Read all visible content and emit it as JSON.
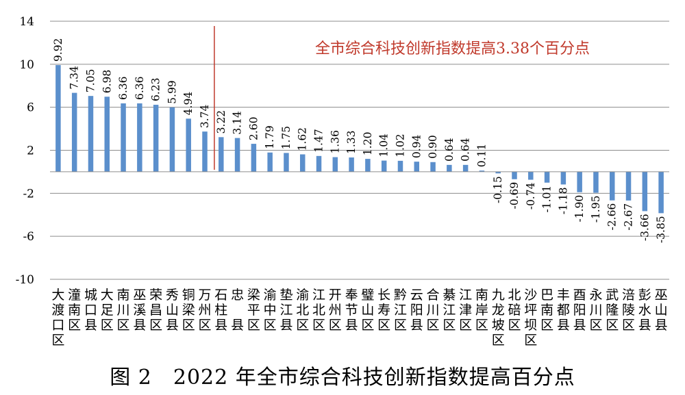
{
  "chart_data": {
    "type": "bar",
    "categories": [
      "大渡口区",
      "潼南区",
      "城口县",
      "大足区",
      "南川区",
      "巫溪县",
      "荣昌区",
      "秀山县",
      "铜梁区",
      "万州区",
      "石柱县",
      "忠县",
      "梁平区",
      "渝中区",
      "垫江县",
      "渝北区",
      "江北区",
      "开州区",
      "奉节县",
      "璧山区",
      "长寿区",
      "黔江区",
      "云阳县",
      "合川区",
      "綦江区",
      "江津区",
      "南岸区",
      "九龙坡区",
      "北碚区",
      "沙坪坝区",
      "巴南区",
      "丰都县",
      "酉阳县",
      "永川区",
      "武隆区",
      "涪陵区",
      "彭水县",
      "巫山县"
    ],
    "category_lines": [
      [
        "大",
        "渡",
        "口",
        "区"
      ],
      [
        "潼",
        "南",
        "区"
      ],
      [
        "城",
        "口",
        "县"
      ],
      [
        "大",
        "足",
        "区"
      ],
      [
        "南",
        "川",
        "区"
      ],
      [
        "巫",
        "溪",
        "县"
      ],
      [
        "荣",
        "昌",
        "区"
      ],
      [
        "秀",
        "山",
        "县"
      ],
      [
        "铜",
        "梁",
        "区"
      ],
      [
        "万",
        "州",
        "区"
      ],
      [
        "石",
        "柱",
        "县"
      ],
      [
        "忠",
        "",
        "县"
      ],
      [
        "梁",
        "平",
        "区"
      ],
      [
        "渝",
        "中",
        "区"
      ],
      [
        "垫",
        "江",
        "县"
      ],
      [
        "渝",
        "北",
        "区"
      ],
      [
        "江",
        "北",
        "区"
      ],
      [
        "开",
        "州",
        "区"
      ],
      [
        "奉",
        "节",
        "县"
      ],
      [
        "璧",
        "山",
        "区"
      ],
      [
        "长",
        "寿",
        "区"
      ],
      [
        "黔",
        "江",
        "区"
      ],
      [
        "云",
        "阳",
        "县"
      ],
      [
        "合",
        "川",
        "区"
      ],
      [
        "綦",
        "江",
        "区"
      ],
      [
        "江",
        "津",
        "区"
      ],
      [
        "南",
        "岸",
        "区"
      ],
      [
        "九",
        "龙",
        "坡",
        "区"
      ],
      [
        "北",
        "碚",
        "区"
      ],
      [
        "沙",
        "坪",
        "坝",
        "区"
      ],
      [
        "巴",
        "南",
        "区"
      ],
      [
        "丰",
        "都",
        "县"
      ],
      [
        "酉",
        "阳",
        "县"
      ],
      [
        "永",
        "川",
        "区"
      ],
      [
        "武",
        "隆",
        "区"
      ],
      [
        "涪",
        "陵",
        "区"
      ],
      [
        "彭",
        "水",
        "县"
      ],
      [
        "巫",
        "山",
        "县"
      ]
    ],
    "values": [
      9.92,
      7.34,
      7.05,
      6.98,
      6.36,
      6.36,
      6.23,
      5.99,
      4.94,
      3.74,
      3.22,
      3.14,
      2.6,
      1.79,
      1.75,
      1.62,
      1.47,
      1.36,
      1.33,
      1.2,
      1.04,
      1.02,
      0.94,
      0.9,
      0.64,
      0.64,
      0.11,
      -0.15,
      -0.69,
      -0.74,
      -1.01,
      -1.18,
      -1.9,
      -1.95,
      -2.66,
      -2.67,
      -3.66,
      -3.85
    ],
    "value_labels": [
      "9.92",
      "7.34",
      "7.05",
      "6.98",
      "6.36",
      "6.36",
      "6.23",
      "5.99",
      "4.94",
      "3.74",
      "3.22",
      "3.14",
      "2.60",
      "1.79",
      "1.75",
      "1.62",
      "1.47",
      "1.36",
      "1.33",
      "1.20",
      "1.04",
      "1.02",
      "0.94",
      "0.90",
      "0.64",
      "0.64",
      "0.11",
      "-0.15",
      "-0.69",
      "-0.74",
      "-1.01",
      "-1.18",
      "-1.90",
      "-1.95",
      "-2.66",
      "-2.67",
      "-3.66",
      "-3.85"
    ],
    "ylim": [
      -10,
      14
    ],
    "yticks": [
      "14",
      "10",
      "6",
      "2",
      "-2",
      "-6",
      "-10"
    ],
    "ytick_values": [
      14,
      10,
      6,
      2,
      -2,
      -6,
      -10
    ],
    "grid": true,
    "bar_color": "#5b8fcc",
    "annotation": {
      "text": "全市综合科技创新指数提高3.38个百分点",
      "color": "#c0392b",
      "marker_after_category_index": 9
    }
  },
  "caption": "图 2　2022 年全市综合科技创新指数提高百分点"
}
